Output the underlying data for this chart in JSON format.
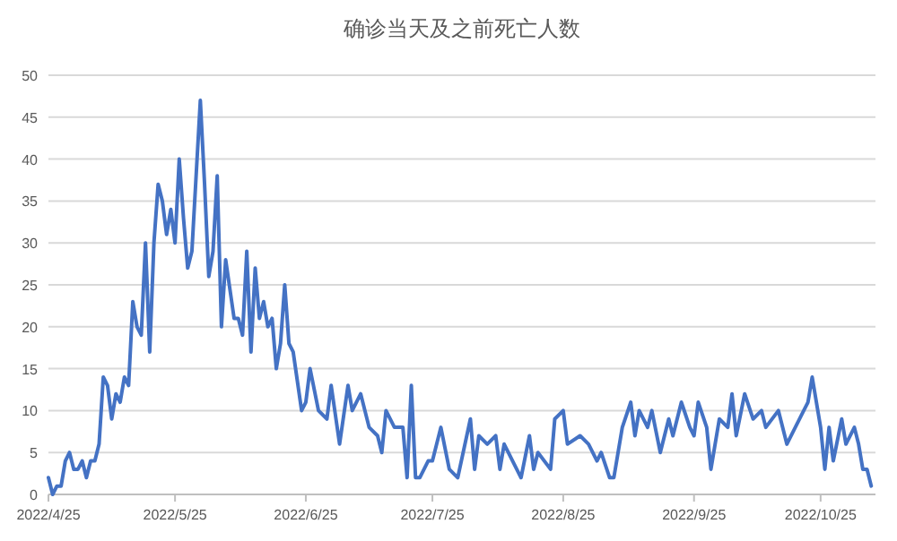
{
  "chart_data": {
    "type": "line",
    "title": "确诊当天及之前死亡人数",
    "x": [
      "2022-04-25",
      "2022-04-26",
      "2022-04-27",
      "2022-04-28",
      "2022-04-29",
      "2022-04-30",
      "2022-05-01",
      "2022-05-02",
      "2022-05-03",
      "2022-05-04",
      "2022-05-05",
      "2022-05-06",
      "2022-05-07",
      "2022-05-08",
      "2022-05-09",
      "2022-05-10",
      "2022-05-11",
      "2022-05-12",
      "2022-05-13",
      "2022-05-14",
      "2022-05-15",
      "2022-05-16",
      "2022-05-17",
      "2022-05-18",
      "2022-05-19",
      "2022-05-20",
      "2022-05-21",
      "2022-05-22",
      "2022-05-23",
      "2022-05-24",
      "2022-05-25",
      "2022-05-26",
      "2022-05-27",
      "2022-05-28",
      "2022-05-29",
      "2022-05-31",
      "2022-06-01",
      "2022-06-02",
      "2022-06-03",
      "2022-06-04",
      "2022-06-05",
      "2022-06-06",
      "2022-06-08",
      "2022-06-09",
      "2022-06-10",
      "2022-06-11",
      "2022-06-12",
      "2022-06-13",
      "2022-06-14",
      "2022-06-15",
      "2022-06-16",
      "2022-06-17",
      "2022-06-18",
      "2022-06-19",
      "2022-06-20",
      "2022-06-21",
      "2022-06-22",
      "2022-06-24",
      "2022-06-25",
      "2022-06-26",
      "2022-06-28",
      "2022-06-30",
      "2022-07-01",
      "2022-07-03",
      "2022-07-05",
      "2022-07-06",
      "2022-07-08",
      "2022-07-10",
      "2022-07-12",
      "2022-07-13",
      "2022-07-14",
      "2022-07-16",
      "2022-07-18",
      "2022-07-19",
      "2022-07-20",
      "2022-07-21",
      "2022-07-22",
      "2022-07-24",
      "2022-07-25",
      "2022-07-27",
      "2022-07-29",
      "2022-07-31",
      "2022-08-03",
      "2022-08-04",
      "2022-08-05",
      "2022-08-07",
      "2022-08-09",
      "2022-08-10",
      "2022-08-11",
      "2022-08-13",
      "2022-08-15",
      "2022-08-17",
      "2022-08-18",
      "2022-08-19",
      "2022-08-22",
      "2022-08-23",
      "2022-08-25",
      "2022-08-26",
      "2022-08-29",
      "2022-08-31",
      "2022-09-02",
      "2022-09-03",
      "2022-09-05",
      "2022-09-06",
      "2022-09-08",
      "2022-09-10",
      "2022-09-11",
      "2022-09-12",
      "2022-09-14",
      "2022-09-15",
      "2022-09-17",
      "2022-09-19",
      "2022-09-20",
      "2022-09-22",
      "2022-09-24",
      "2022-09-25",
      "2022-09-26",
      "2022-09-28",
      "2022-09-29",
      "2022-10-01",
      "2022-10-03",
      "2022-10-04",
      "2022-10-05",
      "2022-10-07",
      "2022-10-09",
      "2022-10-11",
      "2022-10-12",
      "2022-10-15",
      "2022-10-17",
      "2022-10-19",
      "2022-10-21",
      "2022-10-22",
      "2022-10-23",
      "2022-10-25",
      "2022-10-26",
      "2022-10-27",
      "2022-10-28",
      "2022-10-30",
      "2022-10-31",
      "2022-11-02",
      "2022-11-03",
      "2022-11-04",
      "2022-11-05",
      "2022-11-06"
    ],
    "series": [
      {
        "color": "#4472c4",
        "values": [
          2,
          0,
          1,
          1,
          4,
          5,
          3,
          3,
          4,
          2,
          4,
          4,
          6,
          14,
          13,
          9,
          12,
          11,
          14,
          13,
          23,
          20,
          19,
          30,
          17,
          30,
          37,
          35,
          31,
          34,
          30,
          40,
          33,
          27,
          29,
          47,
          37,
          26,
          29,
          38,
          20,
          28,
          21,
          21,
          19,
          29,
          17,
          27,
          21,
          23,
          20,
          21,
          15,
          18,
          25,
          18,
          17,
          10,
          11,
          15,
          10,
          9,
          13,
          6,
          13,
          10,
          12,
          8,
          7,
          5,
          10,
          8,
          8,
          2,
          13,
          2,
          2,
          4,
          4,
          8,
          3,
          2,
          9,
          3,
          7,
          6,
          7,
          3,
          6,
          4,
          2,
          7,
          3,
          5,
          3,
          9,
          10,
          6,
          7,
          6,
          4,
          5,
          2,
          2,
          8,
          11,
          7,
          10,
          8,
          10,
          5,
          9,
          7,
          11,
          8,
          7,
          11,
          8,
          3,
          9,
          8,
          12,
          7,
          12,
          9,
          10,
          8,
          10,
          6,
          8,
          10,
          11,
          14,
          8,
          3,
          8,
          4,
          9,
          6,
          8,
          6,
          3,
          3,
          1
        ]
      }
    ],
    "xlim": [
      "2022-04-25",
      "2022-11-07"
    ],
    "xticks": [
      {
        "value": "2022-04-25",
        "label": "2022/4/25"
      },
      {
        "value": "2022-05-25",
        "label": "2022/5/25"
      },
      {
        "value": "2022-06-25",
        "label": "2022/6/25"
      },
      {
        "value": "2022-07-25",
        "label": "2022/7/25"
      },
      {
        "value": "2022-08-25",
        "label": "2022/8/25"
      },
      {
        "value": "2022-09-25",
        "label": "2022/9/25"
      },
      {
        "value": "2022-10-25",
        "label": "2022/10/25"
      }
    ],
    "ylim": [
      0,
      50
    ],
    "yticks": [
      0,
      5,
      10,
      15,
      20,
      25,
      30,
      35,
      40,
      45,
      50
    ],
    "grid": "y",
    "marker": "none",
    "line_style": "solid"
  }
}
